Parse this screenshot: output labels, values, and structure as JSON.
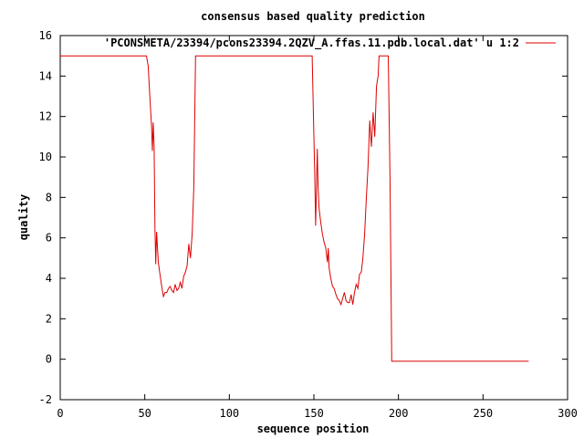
{
  "chart_data": {
    "type": "line",
    "title": "consensus based quality prediction",
    "xlabel": "sequence position",
    "ylabel": "quality",
    "xlim": [
      0,
      300
    ],
    "ylim": [
      -2,
      16
    ],
    "x_ticks": [
      "0",
      "50",
      "100",
      "150",
      "200",
      "250",
      "300"
    ],
    "y_ticks": [
      "-2",
      "0",
      "2",
      "4",
      "6",
      "8",
      "10",
      "12",
      "14",
      "16"
    ],
    "grid": false,
    "legend_position": "top-right",
    "series": [
      {
        "name": "'PCONSMETA/23394/pcons23394.2QZV_A.ffas.11.pdb.local.dat' u 1:2",
        "color": "#dd0000",
        "x": [
          0,
          51,
          52,
          53,
          54,
          54.5,
          55,
          55.5,
          56,
          56.5,
          57,
          58,
          59,
          60,
          61,
          62,
          63,
          64,
          65,
          66,
          67,
          68,
          69,
          70,
          71,
          72,
          73,
          74,
          75,
          76,
          77,
          78,
          79,
          80,
          149,
          150,
          150.5,
          151,
          152,
          152.5,
          153,
          154,
          155,
          156,
          157,
          158,
          158.5,
          159,
          160,
          161,
          162,
          163,
          164,
          165,
          166,
          167,
          168,
          169,
          170,
          171,
          172,
          173,
          174,
          175,
          176,
          177,
          178,
          179,
          180,
          181,
          182,
          183,
          184,
          185,
          186,
          187,
          188,
          188.5,
          189,
          190,
          191,
          192,
          193,
          194,
          195,
          196,
          200,
          277
        ],
        "y": [
          15,
          15,
          14.5,
          13,
          11.5,
          10.3,
          11.7,
          10.5,
          6.5,
          4.7,
          6.3,
          4.8,
          4.2,
          3.6,
          3.1,
          3.3,
          3.3,
          3.5,
          3.6,
          3.4,
          3.3,
          3.7,
          3.4,
          3.5,
          3.8,
          3.5,
          4.1,
          4.3,
          4.6,
          5.7,
          5.0,
          6.2,
          8.5,
          15,
          15,
          11,
          9.2,
          6.6,
          10.4,
          8.5,
          7.5,
          6.8,
          6.2,
          5.8,
          5.5,
          4.8,
          5.5,
          4.5,
          4.0,
          3.6,
          3.5,
          3.2,
          3.0,
          2.9,
          2.7,
          3.0,
          3.3,
          2.9,
          2.8,
          2.8,
          3.2,
          2.7,
          3.3,
          3.7,
          3.5,
          4.2,
          4.3,
          5.0,
          6.2,
          8.0,
          9.5,
          11.8,
          10.5,
          12.2,
          11.0,
          13.5,
          14.0,
          15,
          15,
          15,
          15,
          15,
          15,
          15,
          9,
          -0.1,
          -0.1,
          -0.1
        ]
      }
    ]
  }
}
